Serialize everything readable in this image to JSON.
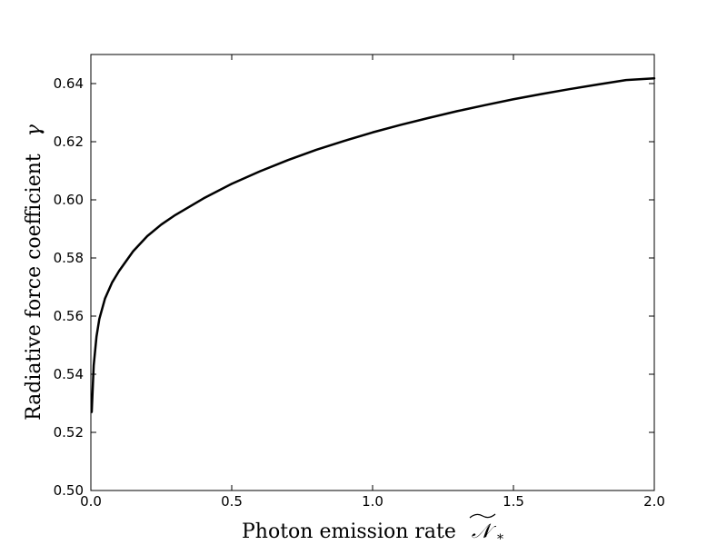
{
  "chart_data": {
    "type": "line",
    "xlabel_text": "Photon emission rate",
    "xlabel_symbol": "𝒩",
    "xlabel_subscript": "*",
    "ylabel_text": "Radiative force coefficient",
    "ylabel_symbol": "γ",
    "xlim": [
      0.0,
      2.0
    ],
    "ylim": [
      0.5,
      0.65
    ],
    "xticks": [
      0.0,
      0.5,
      1.0,
      1.5,
      2.0
    ],
    "xtick_labels": [
      "0.0",
      "0.5",
      "1.0",
      "1.5",
      "2.0"
    ],
    "yticks": [
      0.5,
      0.52,
      0.54,
      0.56,
      0.58,
      0.6,
      0.62,
      0.64
    ],
    "ytick_labels": [
      "0.50",
      "0.52",
      "0.54",
      "0.56",
      "0.58",
      "0.60",
      "0.62",
      "0.64"
    ],
    "grid": false,
    "series": [
      {
        "color": "#000000",
        "x": [
          0.003,
          0.01,
          0.02,
          0.03,
          0.05,
          0.075,
          0.1,
          0.15,
          0.2,
          0.25,
          0.3,
          0.4,
          0.5,
          0.6,
          0.7,
          0.8,
          0.9,
          1.0,
          1.1,
          1.2,
          1.3,
          1.4,
          1.5,
          1.6,
          1.7,
          1.8,
          1.9,
          2.0
        ],
        "y": [
          0.527,
          0.543,
          0.553,
          0.559,
          0.566,
          0.5715,
          0.5755,
          0.5823,
          0.5875,
          0.5915,
          0.5948,
          0.6005,
          0.6055,
          0.6098,
          0.6137,
          0.6172,
          0.6203,
          0.6232,
          0.6258,
          0.6282,
          0.6305,
          0.6326,
          0.6346,
          0.6364,
          0.6381,
          0.6397,
          0.6412,
          0.6418
        ]
      }
    ]
  }
}
